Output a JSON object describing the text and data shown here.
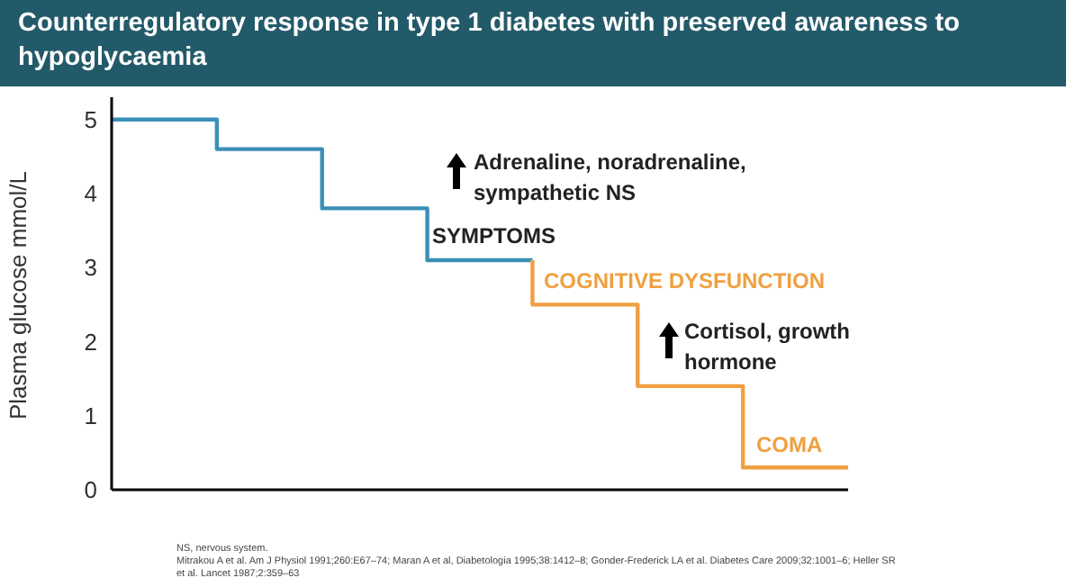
{
  "chart_data": {
    "type": "step",
    "title": "Counterregulatory response in type 1 diabetes with preserved awareness to hypoglycaemia",
    "ylabel": "Plasma glucose mmol/L",
    "categories": [
      null,
      null,
      null,
      null,
      null,
      null,
      null,
      null
    ],
    "series": [
      {
        "color": "#3a8fb7",
        "values": [
          5,
          5,
          4.6,
          3.8,
          3.1,
          null,
          null,
          null
        ]
      },
      {
        "color": "#f0a040",
        "values": [
          null,
          null,
          null,
          null,
          3.1,
          2.5,
          1.4,
          0.3
        ]
      }
    ],
    "ylim": [
      0,
      5.3
    ],
    "yticks": [
      0,
      1,
      2,
      3,
      4,
      5
    ],
    "grid": false,
    "legend": false,
    "tick_labels": "y",
    "marker": "none",
    "line_style": "solid",
    "annotations": [
      "Adrenaline, noradrenaline, sympathetic NS",
      "SYMPTOMS",
      "COGNITIVE DYSFUNCTION",
      "Cortisol, growth hormone",
      "COMA",
      "NS, nervous system.",
      "Mitrakou A et al. Am J Physiol 1991;260:E67–74; Maran A et al, Diabetologia 1995;38:1412–8; Gonder-Frederick LA et al. Diabetes Care 2009;32:1001–6; Heller SR et al. Lancet 1987;2:359–63"
    ]
  }
}
